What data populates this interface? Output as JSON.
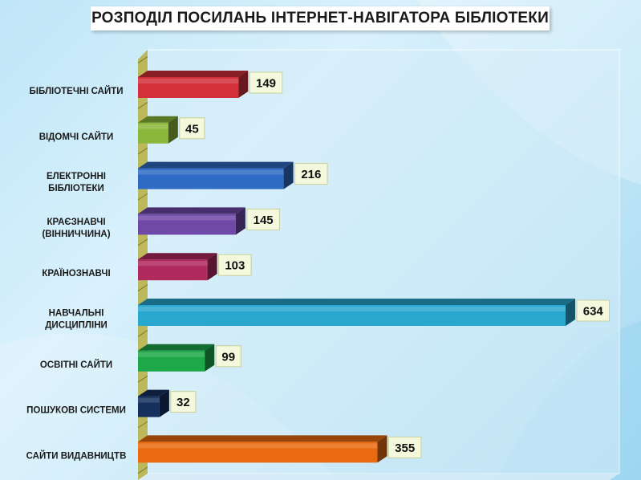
{
  "chart_data": {
    "type": "bar",
    "orientation": "horizontal",
    "title": "РОЗПОДІЛ ПОСИЛАНЬ ІНТЕРНЕТ-НАВІГАТОРА БІБЛІОТЕКИ",
    "categories": [
      [
        "БІБЛІОТЕЧНІ САЙТИ"
      ],
      [
        "ВІДОМЧІ САЙТИ"
      ],
      [
        "ЕЛЕКТРОННІ",
        "БІБЛІОТЕКИ"
      ],
      [
        "КРАЄЗНАВЧІ",
        "(ВІННИЧЧИНА)"
      ],
      [
        "КРАЇНОЗНАВЧІ"
      ],
      [
        "НАВЧАЛЬНІ",
        "ДИСЦИПЛІНИ"
      ],
      [
        "ОСВІТНІ САЙТИ"
      ],
      [
        "ПОШУКОВІ СИСТЕМИ"
      ],
      [
        "САЙТИ ВИДАВНИЦТВ"
      ]
    ],
    "values": [
      149,
      45,
      216,
      145,
      103,
      634,
      99,
      32,
      355
    ],
    "colors": [
      "#d2303a",
      "#8bb83a",
      "#2f6bc4",
      "#6f48a8",
      "#b02a5e",
      "#2aa7cf",
      "#1ea84a",
      "#16305e",
      "#ea6a10"
    ],
    "xlim": [
      0,
      634
    ],
    "grid": false,
    "legend": "none"
  }
}
